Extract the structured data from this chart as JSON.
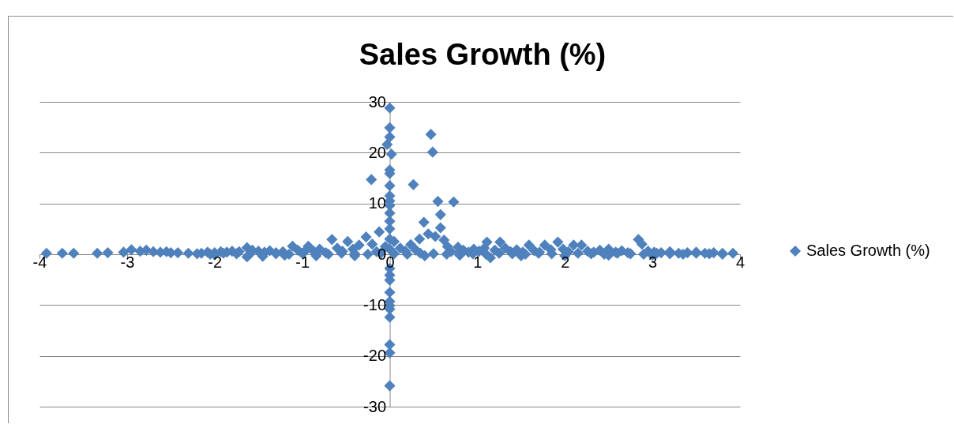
{
  "chart_data": {
    "type": "scatter",
    "title": "Sales Growth (%)",
    "x": [
      -3.92,
      -3.74,
      -3.61,
      -3.34,
      -3.22,
      -3.04,
      -2.95,
      -2.85,
      -2.78,
      -2.7,
      -2.62,
      -2.55,
      -2.5,
      -2.42,
      -2.3,
      -2.15,
      -2.08,
      -2.0,
      -1.93,
      -1.86,
      -1.8,
      -1.72,
      -1.63,
      -1.57,
      -1.5,
      -1.43,
      -1.37,
      -1.3,
      -1.22,
      -1.11,
      -1.05,
      -0.98,
      -0.93,
      -0.87,
      -0.8,
      -0.73,
      -0.66,
      -0.6,
      -0.54,
      -0.48,
      -0.42,
      -0.35,
      -0.27,
      -0.21,
      -0.2,
      -0.15,
      -0.12,
      -0.05,
      -1.63,
      -1.45,
      -1.2,
      -0.84,
      -0.4,
      -2.0,
      0,
      0,
      0,
      -0.03,
      0.02,
      0,
      0,
      0,
      0,
      0,
      0,
      0,
      0,
      0,
      0,
      0,
      0,
      0,
      0,
      0,
      0,
      0,
      0,
      0,
      0,
      0,
      0,
      0.05,
      0.12,
      0.18,
      0.24,
      0.27,
      0.3,
      0.34,
      0.39,
      0.44,
      0.47,
      0.49,
      0.52,
      0.55,
      0.58,
      0.58,
      0.62,
      0.66,
      0.73,
      0.7,
      0.78,
      0.84,
      0.9,
      0.96,
      1.02,
      1.08,
      1.11,
      1.15,
      1.2,
      1.26,
      1.32,
      1.38,
      1.45,
      1.52,
      1.59,
      1.65,
      1.71,
      1.77,
      1.84,
      1.92,
      1.98,
      2.04,
      2.1,
      2.19,
      2.26,
      2.33,
      2.4,
      2.5,
      2.58,
      2.65,
      2.72,
      2.84,
      2.88,
      2.95,
      3.02,
      3.1,
      3.2,
      3.3,
      3.4,
      3.5,
      3.6,
      3.7,
      3.8,
      3.92,
      0.4,
      0.8,
      1.5,
      2.0,
      2.5,
      3.0,
      -2.2,
      -2.05,
      -1.9,
      -1.75,
      -1.6,
      -1.3,
      -1.15,
      -1.0,
      -0.7,
      -0.55,
      -0.4,
      -0.25,
      -0.1,
      0.05,
      0.2,
      0.35,
      0.5,
      0.65,
      0.8,
      0.95,
      1.1,
      1.25,
      1.4,
      1.55,
      1.7,
      1.85,
      2.15,
      2.3,
      2.45,
      2.6,
      2.75,
      2.9,
      3.05,
      3.2,
      3.35,
      3.5,
      3.65,
      3.8
    ],
    "series": [
      {
        "name": "Sales Growth (%)",
        "color": "#4f81bd",
        "values": [
          0.2,
          0.2,
          0.2,
          0.2,
          0.3,
          0.4,
          0.9,
          0.6,
          0.8,
          0.5,
          0.4,
          0.5,
          0.3,
          0.3,
          0.2,
          0.2,
          0.4,
          0.3,
          0.5,
          0.4,
          0.6,
          0.5,
          1.3,
          0.8,
          0.6,
          0.4,
          0.7,
          0.3,
          0.5,
          1.6,
          0.8,
          0.4,
          1.6,
          0.6,
          1.0,
          0.3,
          2.9,
          1.2,
          0.6,
          2.5,
          1.0,
          1.8,
          3.4,
          14.7,
          2.0,
          0.5,
          4.4,
          1.5,
          -0.5,
          -0.4,
          -0.2,
          -0.3,
          -0.3,
          -0.1,
          28.8,
          24.9,
          23.1,
          21.6,
          19.7,
          16.6,
          15.9,
          13.5,
          11.5,
          10.5,
          9.6,
          8.1,
          6.5,
          5.0,
          3.0,
          1.0,
          -2.8,
          -4.1,
          -5.1,
          -7.5,
          -9.3,
          -10.1,
          -10.8,
          -12.4,
          -17.8,
          -19.4,
          -25.9,
          2.5,
          1.2,
          0.6,
          1.9,
          13.7,
          0.8,
          3.0,
          6.3,
          4.0,
          23.6,
          20.1,
          3.5,
          10.4,
          7.8,
          5.2,
          2.8,
          1.5,
          10.3,
          0.5,
          1.4,
          0.8,
          0.4,
          1.0,
          0.6,
          1.2,
          2.4,
          -0.7,
          0.8,
          2.4,
          1.2,
          0.5,
          0.9,
          0.4,
          1.8,
          0.7,
          0.4,
          1.8,
          0.9,
          2.4,
          1.0,
          0.5,
          1.8,
          1.8,
          0.6,
          0.4,
          0.8,
          1.0,
          0.4,
          0.7,
          0.3,
          2.9,
          2.0,
          0.6,
          0.4,
          0.3,
          0.5,
          0.2,
          0.3,
          0.4,
          0.2,
          0.3,
          0.2,
          0.2,
          -0.3,
          -0.2,
          -0.3,
          -0.3,
          -0.2,
          -0.2,
          0.1,
          0.0,
          0.2,
          0.1,
          0.0,
          0.1,
          0.0,
          0.2,
          0.0,
          0.2,
          0.1,
          0.0,
          0.2,
          0.1,
          0.0,
          0.2,
          0.1,
          0.0,
          0.2,
          0.1,
          0.0,
          0.2,
          0.1,
          0.0,
          0.2,
          0.1,
          0.2,
          0.1,
          0.0,
          0.2,
          0.1,
          0.0,
          0.2,
          0.1,
          0.0,
          0.2,
          0.1,
          0.0
        ]
      }
    ],
    "xlim": [
      -4,
      4
    ],
    "xticks": [
      -4,
      -3,
      -2,
      -1,
      0,
      1,
      2,
      3,
      4
    ],
    "ylim": [
      -30,
      30
    ],
    "yticks": [
      -30,
      -20,
      -10,
      0,
      10,
      20,
      30
    ],
    "grid": "y",
    "legend": "right",
    "marker": "diamond"
  }
}
